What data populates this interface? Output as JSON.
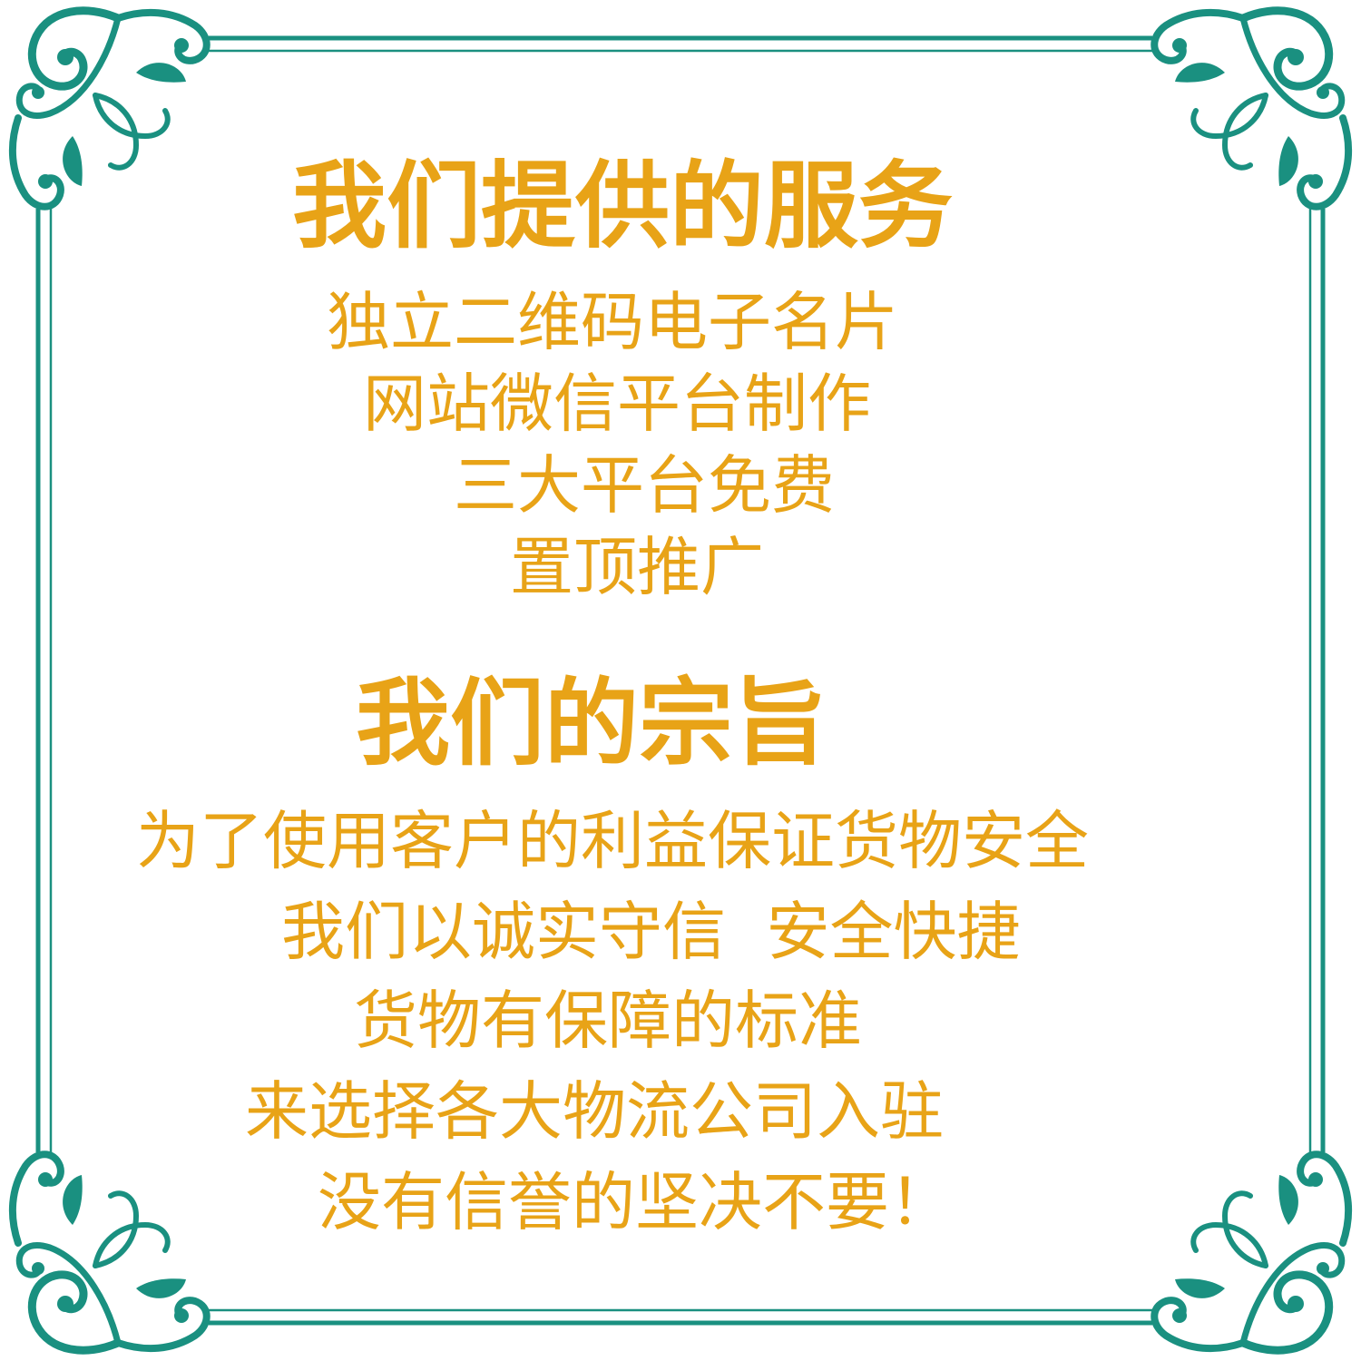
{
  "colors": {
    "text": "#E8A317",
    "frame": "#1A9080",
    "background": "#FFFFFF"
  },
  "services": {
    "title": "我们提供的服务",
    "items": [
      "独立二维码电子名片",
      "网站微信平台制作",
      "三大平台免费",
      "置顶推广"
    ]
  },
  "mission": {
    "title": "我们的宗旨",
    "items": [
      "为了使用客户的利益保证货物安全",
      "我们以诚实守信  安全快捷",
      "货物有保障的标准",
      "来选择各大物流公司入驻",
      "没有信誉的坚决不要！"
    ]
  }
}
